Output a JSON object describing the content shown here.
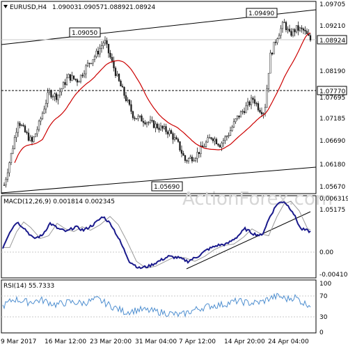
{
  "chart_data": [
    {
      "type": "candlestick",
      "panel": "price",
      "header": {
        "symbol": "EURUSD,H4",
        "open": "1.09003",
        "high": "1.09057",
        "low": "1.08892",
        "close": "1.08924"
      },
      "ylim": [
        1.051,
        1.0985
      ],
      "y_ticks": [
        "1.09705",
        "1.09210",
        "1.08924",
        "1.08190",
        "1.07770",
        "1.07695",
        "1.07185",
        "1.06690",
        "1.06180",
        "1.05670",
        "1.05175"
      ],
      "current_price_label": "1.08924",
      "horizontal_level_label": "1.07770",
      "callouts": [
        "1.09050",
        "1.09490",
        "1.05690"
      ],
      "watermark": "ActionForex.com",
      "x_labels": [
        "9 Mar 2017",
        "16 Mar 12:00",
        "23 Mar 20:00",
        "31 Mar 04:00",
        "7 Apr 12:00",
        "14 Apr 20:00",
        "24 Apr 04:00"
      ],
      "moving_average_color": "#cc0000",
      "candle_color": "#1a1a1a"
    },
    {
      "type": "line",
      "panel": "macd",
      "title": "MACD(12,26,9) 0.001814 0.002345",
      "y_ticks": [
        "0.006319",
        "0.00",
        "-0.004102"
      ],
      "ylim": [
        -0.0047,
        0.0068
      ],
      "macd_color": "#1a1a8c",
      "signal_color": "#999999"
    },
    {
      "type": "line",
      "panel": "rsi",
      "title": "RSI(14) 55.7333",
      "y_ticks": [
        "100",
        "70",
        "30",
        "0"
      ],
      "ylim": [
        0,
        100
      ],
      "rsi_color": "#4f8fd0"
    }
  ]
}
